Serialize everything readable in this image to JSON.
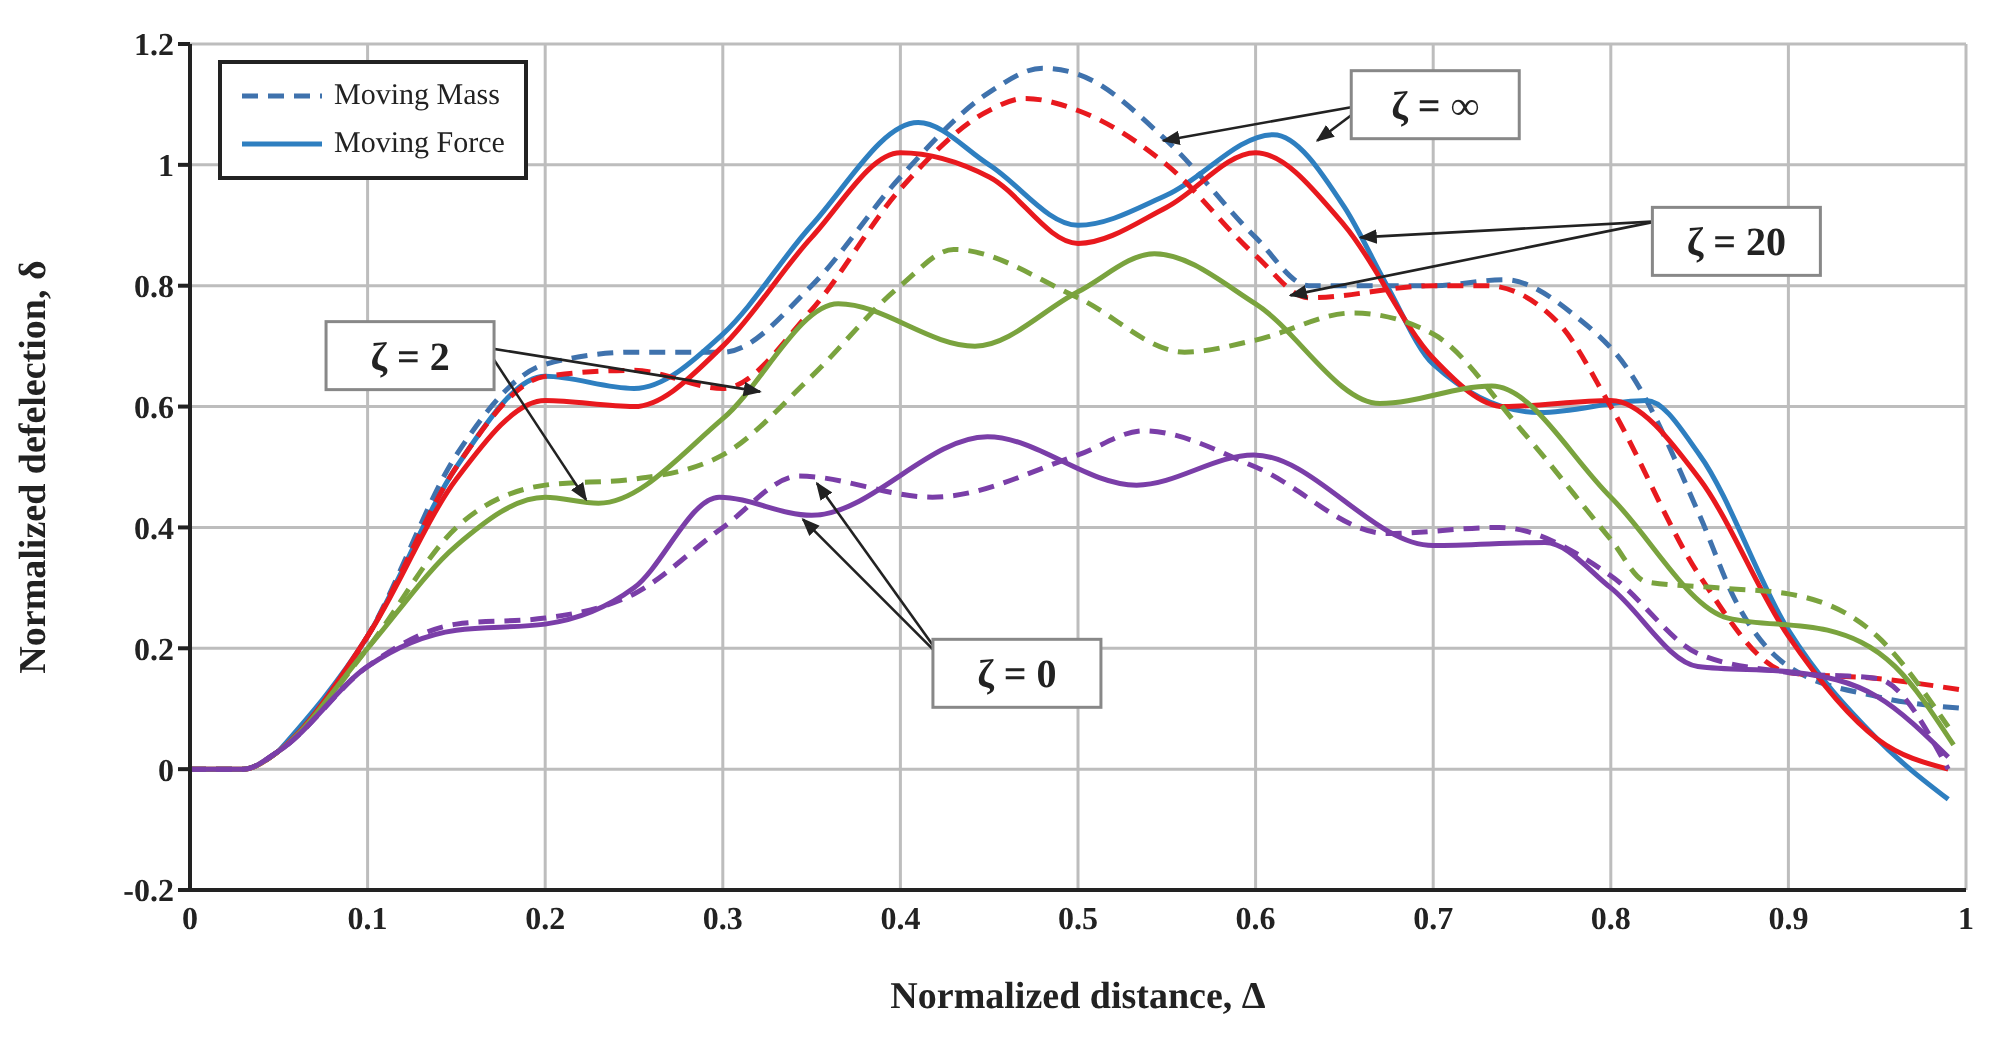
{
  "chart_data": {
    "type": "line",
    "xlabel": "Normalized distance, Δ",
    "ylabel": "Normalized defelection, δ",
    "xlim": [
      0,
      1
    ],
    "ylim": [
      -0.2,
      1.2
    ],
    "xticks": [
      0,
      0.1,
      0.2,
      0.3,
      0.4,
      0.5,
      0.6,
      0.7,
      0.8,
      0.9,
      1
    ],
    "yticks": [
      -0.2,
      0,
      0.2,
      0.4,
      0.6,
      0.8,
      1,
      1.2
    ],
    "grid": true,
    "legend": "top left",
    "marker": "none",
    "annotations": [
      {
        "text": "ζ = ∞",
        "x": 0.548,
        "y": 1.04
      },
      {
        "text": "ζ = 20",
        "x": 0.659,
        "y": 0.88
      },
      {
        "text": "ζ = 2",
        "x": 0.223,
        "y": 0.446
      },
      {
        "text": "ζ = 0",
        "x": 0.353,
        "y": 0.473
      }
    ],
    "series": [
      {
        "name": "Moving Mass",
        "color": "#3f72ad",
        "line_style": "dashed",
        "x": [
          0,
          0.03,
          0.05,
          0.1,
          0.15,
          0.2,
          0.25,
          0.3,
          0.35,
          0.4,
          0.45,
          0.48,
          0.5,
          0.55,
          0.6,
          0.63,
          0.7,
          0.74,
          0.78,
          0.81,
          0.85,
          0.87,
          0.9,
          0.95,
          1.0
        ],
        "values": [
          0,
          0,
          0.03,
          0.22,
          0.52,
          0.67,
          0.69,
          0.69,
          0.8,
          0.98,
          1.12,
          1.16,
          1.15,
          1.04,
          0.88,
          0.8,
          0.8,
          0.81,
          0.75,
          0.66,
          0.42,
          0.28,
          0.17,
          0.12,
          0.1
        ]
      },
      {
        "name": "Moving Force",
        "color": "#2e7fc0",
        "line_style": "solid",
        "x": [
          0.05,
          0.1,
          0.15,
          0.2,
          0.25,
          0.3,
          0.35,
          0.41,
          0.45,
          0.5,
          0.55,
          0.61,
          0.65,
          0.674,
          0.7,
          0.76,
          0.82,
          0.85,
          0.9,
          0.95,
          0.99
        ],
        "values": [
          0.03,
          0.22,
          0.5,
          0.65,
          0.63,
          0.72,
          0.9,
          1.07,
          1.0,
          0.9,
          0.95,
          1.05,
          0.93,
          0.8,
          0.67,
          0.59,
          0.61,
          0.52,
          0.23,
          0.05,
          -0.05
        ]
      },
      {
        "color": "#e8191e",
        "line_style": "dashed",
        "x": [
          0,
          0.03,
          0.05,
          0.1,
          0.15,
          0.2,
          0.25,
          0.3,
          0.35,
          0.4,
          0.45,
          0.47,
          0.5,
          0.55,
          0.6,
          0.63,
          0.7,
          0.73,
          0.77,
          0.8,
          0.85,
          0.9,
          0.95,
          1.0
        ],
        "values": [
          0,
          0,
          0.03,
          0.22,
          0.5,
          0.65,
          0.66,
          0.63,
          0.76,
          0.96,
          1.09,
          1.11,
          1.09,
          1.0,
          0.85,
          0.78,
          0.8,
          0.8,
          0.74,
          0.6,
          0.32,
          0.16,
          0.15,
          0.13
        ]
      },
      {
        "color": "#e8191e",
        "line_style": "solid",
        "x": [
          0,
          0.03,
          0.05,
          0.1,
          0.15,
          0.2,
          0.25,
          0.3,
          0.35,
          0.4,
          0.45,
          0.5,
          0.55,
          0.6,
          0.65,
          0.7,
          0.74,
          0.8,
          0.85,
          0.9,
          0.95,
          0.99
        ],
        "values": [
          0,
          0,
          0.03,
          0.22,
          0.48,
          0.61,
          0.6,
          0.7,
          0.88,
          1.02,
          0.98,
          0.87,
          0.93,
          1.02,
          0.9,
          0.68,
          0.6,
          0.61,
          0.48,
          0.22,
          0.05,
          0.0
        ]
      },
      {
        "color": "#7aa33e",
        "line_style": "dashed",
        "x": [
          0,
          0.03,
          0.05,
          0.1,
          0.15,
          0.2,
          0.25,
          0.3,
          0.35,
          0.4,
          0.43,
          0.5,
          0.56,
          0.6,
          0.655,
          0.7,
          0.75,
          0.8,
          0.82,
          0.86,
          0.9,
          0.95,
          0.99
        ],
        "values": [
          0,
          0,
          0.03,
          0.2,
          0.4,
          0.47,
          0.48,
          0.52,
          0.65,
          0.8,
          0.86,
          0.78,
          0.69,
          0.71,
          0.755,
          0.72,
          0.56,
          0.38,
          0.31,
          0.3,
          0.29,
          0.22,
          0.07
        ]
      },
      {
        "color": "#7aa33e",
        "line_style": "solid",
        "x": [
          0,
          0.03,
          0.05,
          0.1,
          0.15,
          0.2,
          0.23,
          0.3,
          0.365,
          0.442,
          0.5,
          0.543,
          0.6,
          0.67,
          0.733,
          0.8,
          0.866,
          0.922,
          0.96,
          0.993
        ],
        "values": [
          0,
          0,
          0.03,
          0.2,
          0.37,
          0.45,
          0.44,
          0.58,
          0.77,
          0.7,
          0.79,
          0.853,
          0.77,
          0.605,
          0.634,
          0.45,
          0.25,
          0.23,
          0.17,
          0.04
        ]
      },
      {
        "color": "#7a3ea8",
        "line_style": "dashed",
        "x": [
          0,
          0.03,
          0.05,
          0.1,
          0.15,
          0.2,
          0.25,
          0.3,
          0.343,
          0.418,
          0.5,
          0.537,
          0.6,
          0.674,
          0.737,
          0.8,
          0.85,
          0.9,
          0.95,
          0.99
        ],
        "values": [
          0,
          0,
          0.03,
          0.17,
          0.24,
          0.25,
          0.29,
          0.4,
          0.485,
          0.45,
          0.52,
          0.56,
          0.5,
          0.39,
          0.4,
          0.32,
          0.19,
          0.16,
          0.15,
          0.0
        ]
      },
      {
        "color": "#7a3ea8",
        "line_style": "solid",
        "x": [
          0,
          0.03,
          0.05,
          0.1,
          0.15,
          0.2,
          0.25,
          0.298,
          0.35,
          0.449,
          0.533,
          0.599,
          0.7,
          0.763,
          0.8,
          0.849,
          0.904,
          0.95,
          0.99
        ],
        "values": [
          0,
          0,
          0.03,
          0.17,
          0.23,
          0.24,
          0.3,
          0.45,
          0.42,
          0.55,
          0.47,
          0.52,
          0.37,
          0.375,
          0.3,
          0.17,
          0.16,
          0.12,
          0.02
        ]
      }
    ]
  }
}
